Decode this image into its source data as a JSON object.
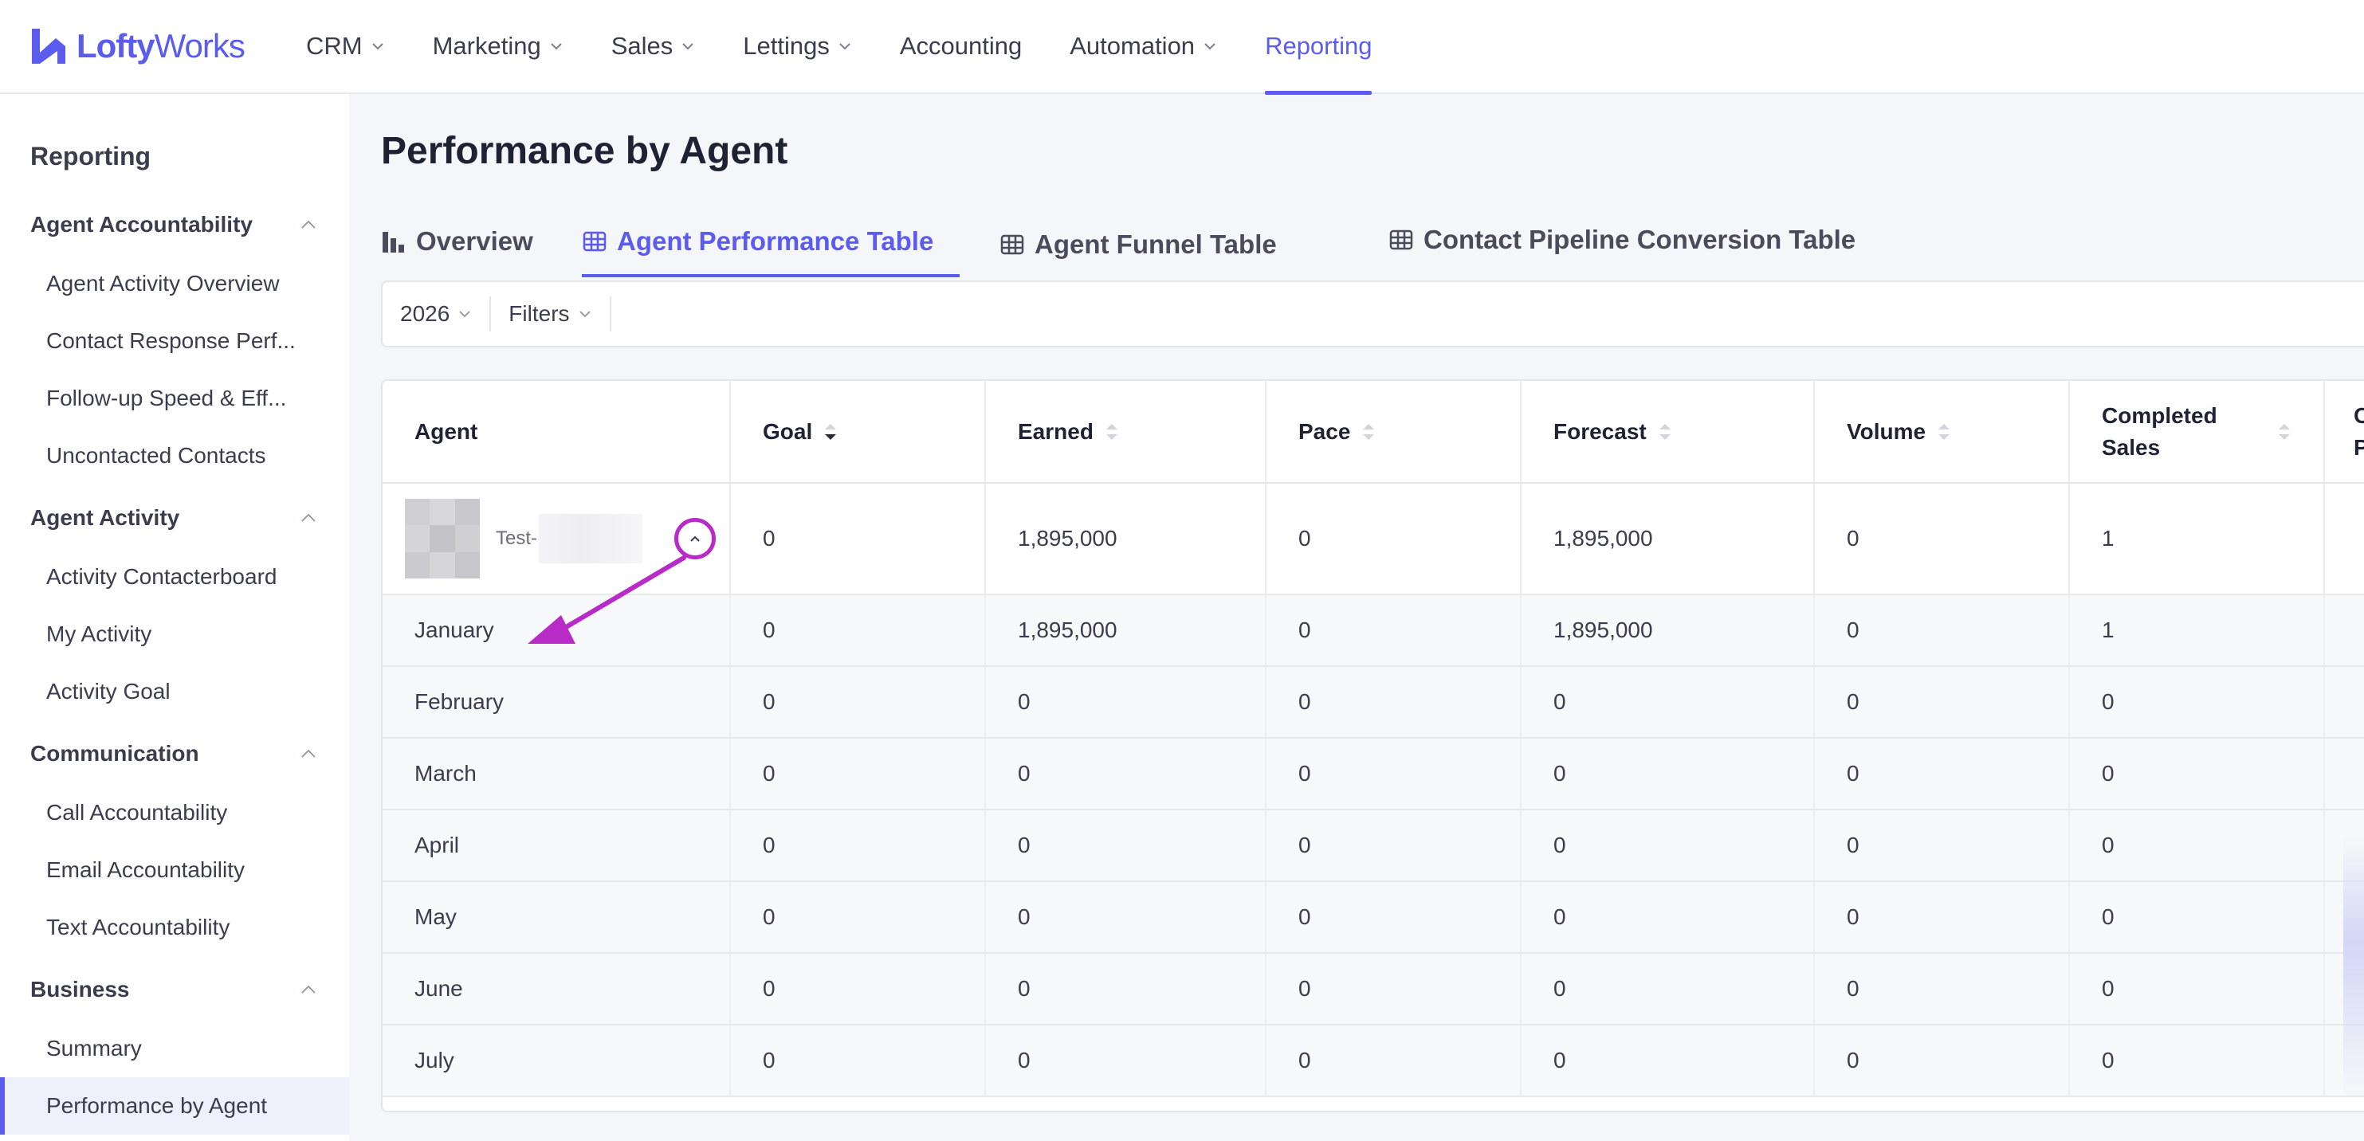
{
  "brand": {
    "name_bold": "Lofty",
    "name_light": "Works",
    "color": "#5b5bf0"
  },
  "topnav": {
    "items": [
      {
        "label": "CRM",
        "dropdown": true
      },
      {
        "label": "Marketing",
        "dropdown": true
      },
      {
        "label": "Sales",
        "dropdown": true
      },
      {
        "label": "Lettings",
        "dropdown": true
      },
      {
        "label": "Accounting",
        "dropdown": false
      },
      {
        "label": "Automation",
        "dropdown": true
      },
      {
        "label": "Reporting",
        "dropdown": false,
        "active": true
      }
    ]
  },
  "sidebar": {
    "title": "Reporting",
    "groups": [
      {
        "label": "Agent Accountability",
        "items": [
          "Agent Activity Overview",
          "Contact Response Perf...",
          "Follow-up Speed & Eff...",
          "Uncontacted Contacts"
        ]
      },
      {
        "label": "Agent Activity",
        "items": [
          "Activity Contacterboard",
          "My Activity",
          "Activity Goal"
        ]
      },
      {
        "label": "Communication",
        "items": [
          "Call Accountability",
          "Email Accountability",
          "Text Accountability"
        ]
      },
      {
        "label": "Business",
        "items": [
          "Summary",
          "Performance by Agent"
        ]
      }
    ],
    "active_item": "Performance by Agent"
  },
  "page": {
    "title": "Performance by Agent",
    "tabs": [
      {
        "label": "Overview",
        "icon": "bar-chart-icon"
      },
      {
        "label": "Agent Performance Table",
        "icon": "table-icon",
        "active": true
      },
      {
        "label": "Agent Funnel Table",
        "icon": "table-icon"
      },
      {
        "label": "Contact Pipeline Conversion Table",
        "icon": "table-icon"
      }
    ],
    "filters": {
      "year": "2026",
      "filters_label": "Filters"
    }
  },
  "table": {
    "columns": [
      "Agent",
      "Goal",
      "Earned",
      "Pace",
      "Forecast",
      "Volume",
      "Completed Sales",
      "C P"
    ],
    "agent_row": {
      "name": "Test-",
      "values": [
        "0",
        "1,895,000",
        "0",
        "1,895,000",
        "0",
        "1"
      ]
    },
    "month_rows": [
      {
        "month": "January",
        "values": [
          "0",
          "1,895,000",
          "0",
          "1,895,000",
          "0",
          "1"
        ]
      },
      {
        "month": "February",
        "values": [
          "0",
          "0",
          "0",
          "0",
          "0",
          "0"
        ]
      },
      {
        "month": "March",
        "values": [
          "0",
          "0",
          "0",
          "0",
          "0",
          "0"
        ]
      },
      {
        "month": "April",
        "values": [
          "0",
          "0",
          "0",
          "0",
          "0",
          "0"
        ]
      },
      {
        "month": "May",
        "values": [
          "0",
          "0",
          "0",
          "0",
          "0",
          "0"
        ]
      },
      {
        "month": "June",
        "values": [
          "0",
          "0",
          "0",
          "0",
          "0",
          "0"
        ]
      },
      {
        "month": "July",
        "values": [
          "0",
          "0",
          "0",
          "0",
          "0",
          "0"
        ]
      }
    ]
  },
  "colors": {
    "accent": "#5b5bf0",
    "annotation": "#b82bc6"
  }
}
